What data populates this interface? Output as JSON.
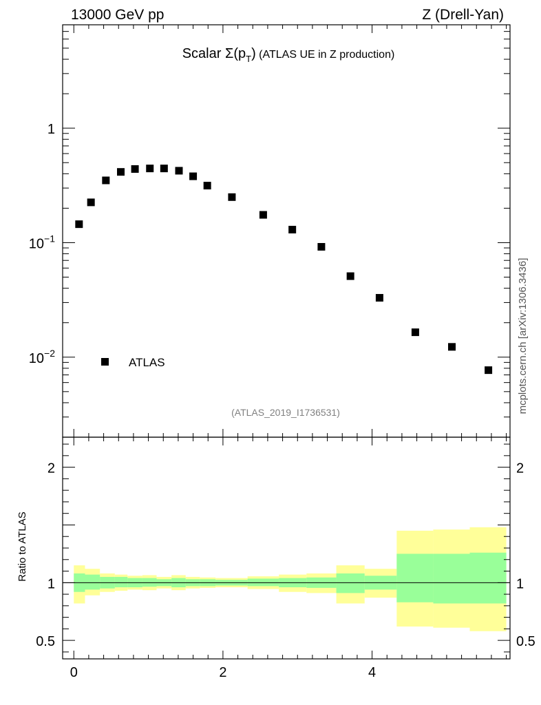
{
  "header": {
    "left": "13000 GeV pp",
    "right": "Z (Drell-Yan)"
  },
  "title": {
    "prefix": "Scalar ",
    "symbol": "Σ(p",
    "subscript": "T",
    "close": ")",
    "suffix": " (ATLAS UE in Z production)"
  },
  "reference_label": "(ATLAS_2019_I1736531)",
  "side_label": "mcplots.cern.ch [arXiv:1306.3436]",
  "colors": {
    "data_marker": "#000000",
    "band_outer": "#ffff99",
    "band_inner": "#99ff99",
    "ref_text": "#808080"
  },
  "chart_data": [
    {
      "type": "scatter",
      "yscale": "log",
      "xlim": [
        -0.15,
        5.85
      ],
      "ylim": [
        0.002,
        8
      ],
      "ytick_labels": [
        {
          "value": 1,
          "base": "1",
          "exp": ""
        },
        {
          "value": 0.1,
          "base": "10",
          "exp": "−1"
        },
        {
          "value": 0.01,
          "base": "10",
          "exp": "−2"
        }
      ],
      "legend": {
        "label": "ATLAS",
        "position": "bottom-left"
      },
      "series": [
        {
          "name": "ATLAS",
          "x": [
            0.07,
            0.23,
            0.43,
            0.63,
            0.82,
            1.02,
            1.21,
            1.41,
            1.6,
            1.79,
            2.12,
            2.54,
            2.93,
            3.32,
            3.71,
            4.1,
            4.58,
            5.07,
            5.56
          ],
          "y": [
            0.145,
            0.225,
            0.35,
            0.415,
            0.44,
            0.445,
            0.445,
            0.425,
            0.38,
            0.315,
            0.25,
            0.175,
            0.13,
            0.092,
            0.051,
            0.033,
            0.0165,
            0.0123,
            0.0077
          ]
        }
      ]
    },
    {
      "type": "area",
      "ylabel": "Ratio to ATLAS",
      "xlim": [
        -0.15,
        5.85
      ],
      "ylim": [
        0.34,
        2.26
      ],
      "xticks": [
        0,
        2,
        4
      ],
      "yticks": [
        0.5,
        1,
        2
      ],
      "reference_line": 1,
      "bins": [
        {
          "lo": 0.0,
          "hi": 0.15,
          "inner": [
            0.92,
            1.08
          ],
          "outer": [
            0.82,
            1.15
          ]
        },
        {
          "lo": 0.15,
          "hi": 0.35,
          "inner": [
            0.94,
            1.07
          ],
          "outer": [
            0.89,
            1.12
          ]
        },
        {
          "lo": 0.35,
          "hi": 0.55,
          "inner": [
            0.95,
            1.05
          ],
          "outer": [
            0.92,
            1.08
          ]
        },
        {
          "lo": 0.55,
          "hi": 0.72,
          "inner": [
            0.96,
            1.05
          ],
          "outer": [
            0.93,
            1.07
          ]
        },
        {
          "lo": 0.72,
          "hi": 0.92,
          "inner": [
            0.96,
            1.04
          ],
          "outer": [
            0.94,
            1.06
          ]
        },
        {
          "lo": 0.92,
          "hi": 1.11,
          "inner": [
            0.965,
            1.04
          ],
          "outer": [
            0.935,
            1.065
          ]
        },
        {
          "lo": 1.11,
          "hi": 1.31,
          "inner": [
            0.97,
            1.03
          ],
          "outer": [
            0.95,
            1.05
          ]
        },
        {
          "lo": 1.31,
          "hi": 1.5,
          "inner": [
            0.96,
            1.04
          ],
          "outer": [
            0.935,
            1.065
          ]
        },
        {
          "lo": 1.5,
          "hi": 1.69,
          "inner": [
            0.97,
            1.03
          ],
          "outer": [
            0.95,
            1.05
          ]
        },
        {
          "lo": 1.69,
          "hi": 1.9,
          "inner": [
            0.97,
            1.03
          ],
          "outer": [
            0.955,
            1.045
          ]
        },
        {
          "lo": 1.9,
          "hi": 2.33,
          "inner": [
            0.975,
            1.025
          ],
          "outer": [
            0.96,
            1.04
          ]
        },
        {
          "lo": 2.33,
          "hi": 2.75,
          "inner": [
            0.97,
            1.035
          ],
          "outer": [
            0.945,
            1.055
          ]
        },
        {
          "lo": 2.75,
          "hi": 3.12,
          "inner": [
            0.96,
            1.04
          ],
          "outer": [
            0.92,
            1.07
          ]
        },
        {
          "lo": 3.12,
          "hi": 3.52,
          "inner": [
            0.955,
            1.045
          ],
          "outer": [
            0.91,
            1.08
          ]
        },
        {
          "lo": 3.52,
          "hi": 3.9,
          "inner": [
            0.91,
            1.08
          ],
          "outer": [
            0.82,
            1.15
          ]
        },
        {
          "lo": 3.9,
          "hi": 4.33,
          "inner": [
            0.94,
            1.06
          ],
          "outer": [
            0.87,
            1.12
          ]
        },
        {
          "lo": 4.33,
          "hi": 4.82,
          "inner": [
            0.83,
            1.25
          ],
          "outer": [
            0.62,
            1.45
          ]
        },
        {
          "lo": 4.82,
          "hi": 5.31,
          "inner": [
            0.82,
            1.25
          ],
          "outer": [
            0.61,
            1.46
          ]
        },
        {
          "lo": 5.31,
          "hi": 5.8,
          "inner": [
            0.82,
            1.26
          ],
          "outer": [
            0.58,
            1.48
          ]
        }
      ]
    }
  ]
}
